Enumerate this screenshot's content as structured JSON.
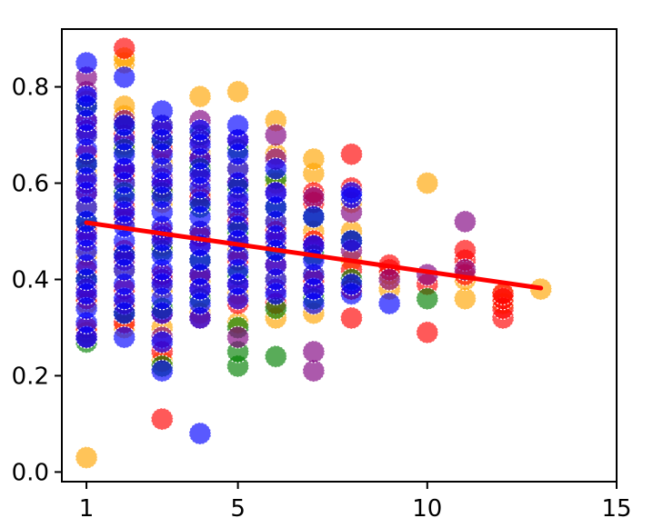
{
  "chart_data": {
    "type": "scatter",
    "title": "",
    "xlabel": "",
    "ylabel": "",
    "xlim": [
      0.35,
      15
    ],
    "ylim": [
      -0.02,
      0.92
    ],
    "xticks": [
      {
        "value": 1,
        "label": "1"
      },
      {
        "value": 5,
        "label": "5"
      },
      {
        "value": 10,
        "label": "10"
      },
      {
        "value": 15,
        "label": "15"
      }
    ],
    "yticks": [
      {
        "value": 0.0,
        "label": "0.0"
      },
      {
        "value": 0.2,
        "label": "0.2"
      },
      {
        "value": 0.4,
        "label": "0.4"
      },
      {
        "value": 0.6,
        "label": "0.6"
      },
      {
        "value": 0.8,
        "label": "0.8"
      }
    ],
    "grid": false,
    "legend": "none",
    "marker_opacity": 0.65,
    "series": [
      {
        "color": "#ffa500",
        "points": [
          [
            1,
            0.03
          ],
          [
            1,
            0.29
          ],
          [
            1,
            0.35
          ],
          [
            1,
            0.45
          ],
          [
            1,
            0.55
          ],
          [
            1,
            0.62
          ],
          [
            1,
            0.7
          ],
          [
            1,
            0.77
          ],
          [
            2,
            0.3
          ],
          [
            2,
            0.34
          ],
          [
            2,
            0.42
          ],
          [
            2,
            0.52
          ],
          [
            2,
            0.6
          ],
          [
            2,
            0.68
          ],
          [
            2,
            0.74
          ],
          [
            2,
            0.76
          ],
          [
            2,
            0.85
          ],
          [
            2,
            0.86
          ],
          [
            3,
            0.23
          ],
          [
            3,
            0.3
          ],
          [
            3,
            0.38
          ],
          [
            3,
            0.47
          ],
          [
            3,
            0.56
          ],
          [
            3,
            0.64
          ],
          [
            3,
            0.72
          ],
          [
            4,
            0.33
          ],
          [
            4,
            0.4
          ],
          [
            4,
            0.5
          ],
          [
            4,
            0.58
          ],
          [
            4,
            0.66
          ],
          [
            4,
            0.78
          ],
          [
            5,
            0.31
          ],
          [
            5,
            0.37
          ],
          [
            5,
            0.46
          ],
          [
            5,
            0.54
          ],
          [
            5,
            0.63
          ],
          [
            5,
            0.79
          ],
          [
            6,
            0.32
          ],
          [
            6,
            0.4
          ],
          [
            6,
            0.52
          ],
          [
            6,
            0.6
          ],
          [
            6,
            0.66
          ],
          [
            6,
            0.73
          ],
          [
            7,
            0.33
          ],
          [
            7,
            0.41
          ],
          [
            7,
            0.5
          ],
          [
            7,
            0.62
          ],
          [
            7,
            0.65
          ],
          [
            8,
            0.38
          ],
          [
            8,
            0.44
          ],
          [
            8,
            0.5
          ],
          [
            8,
            0.56
          ],
          [
            9,
            0.38
          ],
          [
            9,
            0.41
          ],
          [
            10,
            0.6
          ],
          [
            11,
            0.36
          ],
          [
            11,
            0.4
          ],
          [
            12,
            0.35
          ],
          [
            12,
            0.37
          ],
          [
            13,
            0.38
          ]
        ]
      },
      {
        "color": "#ff0000",
        "points": [
          [
            1,
            0.3
          ],
          [
            1,
            0.36
          ],
          [
            1,
            0.42
          ],
          [
            1,
            0.5
          ],
          [
            1,
            0.58
          ],
          [
            1,
            0.66
          ],
          [
            1,
            0.73
          ],
          [
            2,
            0.31
          ],
          [
            2,
            0.38
          ],
          [
            2,
            0.46
          ],
          [
            2,
            0.55
          ],
          [
            2,
            0.62
          ],
          [
            2,
            0.7
          ],
          [
            2,
            0.88
          ],
          [
            3,
            0.11
          ],
          [
            3,
            0.25
          ],
          [
            3,
            0.33
          ],
          [
            3,
            0.41
          ],
          [
            3,
            0.5
          ],
          [
            3,
            0.59
          ],
          [
            3,
            0.67
          ],
          [
            4,
            0.32
          ],
          [
            4,
            0.41
          ],
          [
            4,
            0.49
          ],
          [
            4,
            0.57
          ],
          [
            4,
            0.65
          ],
          [
            5,
            0.35
          ],
          [
            5,
            0.44
          ],
          [
            5,
            0.52
          ],
          [
            5,
            0.6
          ],
          [
            6,
            0.35
          ],
          [
            6,
            0.43
          ],
          [
            6,
            0.5
          ],
          [
            7,
            0.4
          ],
          [
            7,
            0.48
          ],
          [
            7,
            0.56
          ],
          [
            7,
            0.58
          ],
          [
            8,
            0.32
          ],
          [
            8,
            0.38
          ],
          [
            8,
            0.42
          ],
          [
            8,
            0.59
          ],
          [
            8,
            0.66
          ],
          [
            9,
            0.42
          ],
          [
            9,
            0.43
          ],
          [
            10,
            0.29
          ],
          [
            10,
            0.39
          ],
          [
            11,
            0.41
          ],
          [
            11,
            0.44
          ],
          [
            11,
            0.46
          ],
          [
            12,
            0.32
          ],
          [
            12,
            0.34
          ],
          [
            12,
            0.36
          ],
          [
            12,
            0.37
          ]
        ]
      },
      {
        "color": "#008000",
        "points": [
          [
            1,
            0.27
          ],
          [
            1,
            0.4
          ],
          [
            1,
            0.52
          ],
          [
            1,
            0.64
          ],
          [
            1,
            0.76
          ],
          [
            2,
            0.33
          ],
          [
            2,
            0.45
          ],
          [
            2,
            0.58
          ],
          [
            2,
            0.67
          ],
          [
            2,
            0.72
          ],
          [
            3,
            0.22
          ],
          [
            3,
            0.34
          ],
          [
            3,
            0.46
          ],
          [
            3,
            0.58
          ],
          [
            3,
            0.69
          ],
          [
            4,
            0.36
          ],
          [
            4,
            0.44
          ],
          [
            4,
            0.55
          ],
          [
            4,
            0.63
          ],
          [
            4,
            0.7
          ],
          [
            5,
            0.22
          ],
          [
            5,
            0.25
          ],
          [
            5,
            0.3
          ],
          [
            5,
            0.41
          ],
          [
            5,
            0.5
          ],
          [
            5,
            0.59
          ],
          [
            5,
            0.67
          ],
          [
            6,
            0.24
          ],
          [
            6,
            0.34
          ],
          [
            6,
            0.46
          ],
          [
            6,
            0.55
          ],
          [
            6,
            0.61
          ],
          [
            7,
            0.36
          ],
          [
            7,
            0.45
          ],
          [
            7,
            0.53
          ],
          [
            8,
            0.4
          ],
          [
            8,
            0.48
          ],
          [
            10,
            0.36
          ]
        ]
      },
      {
        "color": "#800080",
        "points": [
          [
            1,
            0.28
          ],
          [
            1,
            0.38
          ],
          [
            1,
            0.48
          ],
          [
            1,
            0.6
          ],
          [
            1,
            0.71
          ],
          [
            1,
            0.79
          ],
          [
            1,
            0.82
          ],
          [
            2,
            0.35
          ],
          [
            2,
            0.44
          ],
          [
            2,
            0.53
          ],
          [
            2,
            0.63
          ],
          [
            2,
            0.73
          ],
          [
            3,
            0.28
          ],
          [
            3,
            0.4
          ],
          [
            3,
            0.49
          ],
          [
            3,
            0.61
          ],
          [
            3,
            0.71
          ],
          [
            4,
            0.38
          ],
          [
            4,
            0.47
          ],
          [
            4,
            0.61
          ],
          [
            4,
            0.69
          ],
          [
            4,
            0.73
          ],
          [
            5,
            0.28
          ],
          [
            5,
            0.39
          ],
          [
            5,
            0.48
          ],
          [
            5,
            0.56
          ],
          [
            5,
            0.69
          ],
          [
            6,
            0.38
          ],
          [
            6,
            0.48
          ],
          [
            6,
            0.58
          ],
          [
            6,
            0.65
          ],
          [
            6,
            0.7
          ],
          [
            7,
            0.21
          ],
          [
            7,
            0.25
          ],
          [
            7,
            0.38
          ],
          [
            7,
            0.47
          ],
          [
            7,
            0.57
          ],
          [
            8,
            0.46
          ],
          [
            8,
            0.54
          ],
          [
            9,
            0.4
          ],
          [
            10,
            0.41
          ],
          [
            11,
            0.42
          ],
          [
            11,
            0.52
          ]
        ]
      },
      {
        "color": "#0000ff",
        "points": [
          [
            1,
            0.28
          ],
          [
            1,
            0.31
          ],
          [
            1,
            0.34
          ],
          [
            1,
            0.37
          ],
          [
            1,
            0.4
          ],
          [
            1,
            0.43
          ],
          [
            1,
            0.46
          ],
          [
            1,
            0.49
          ],
          [
            1,
            0.52
          ],
          [
            1,
            0.55
          ],
          [
            1,
            0.58
          ],
          [
            1,
            0.61
          ],
          [
            1,
            0.64
          ],
          [
            1,
            0.67
          ],
          [
            1,
            0.7
          ],
          [
            1,
            0.73
          ],
          [
            1,
            0.76
          ],
          [
            1,
            0.78
          ],
          [
            1,
            0.85
          ],
          [
            2,
            0.28
          ],
          [
            2,
            0.33
          ],
          [
            2,
            0.36
          ],
          [
            2,
            0.39
          ],
          [
            2,
            0.42
          ],
          [
            2,
            0.45
          ],
          [
            2,
            0.48
          ],
          [
            2,
            0.51
          ],
          [
            2,
            0.54
          ],
          [
            2,
            0.57
          ],
          [
            2,
            0.6
          ],
          [
            2,
            0.63
          ],
          [
            2,
            0.66
          ],
          [
            2,
            0.69
          ],
          [
            2,
            0.72
          ],
          [
            2,
            0.82
          ],
          [
            3,
            0.21
          ],
          [
            3,
            0.27
          ],
          [
            3,
            0.33
          ],
          [
            3,
            0.36
          ],
          [
            3,
            0.39
          ],
          [
            3,
            0.42
          ],
          [
            3,
            0.45
          ],
          [
            3,
            0.48
          ],
          [
            3,
            0.51
          ],
          [
            3,
            0.54
          ],
          [
            3,
            0.57
          ],
          [
            3,
            0.6
          ],
          [
            3,
            0.63
          ],
          [
            3,
            0.66
          ],
          [
            3,
            0.69
          ],
          [
            3,
            0.72
          ],
          [
            3,
            0.75
          ],
          [
            4,
            0.08
          ],
          [
            4,
            0.32
          ],
          [
            4,
            0.35
          ],
          [
            4,
            0.38
          ],
          [
            4,
            0.41
          ],
          [
            4,
            0.44
          ],
          [
            4,
            0.47
          ],
          [
            4,
            0.5
          ],
          [
            4,
            0.53
          ],
          [
            4,
            0.56
          ],
          [
            4,
            0.59
          ],
          [
            4,
            0.62
          ],
          [
            4,
            0.65
          ],
          [
            4,
            0.68
          ],
          [
            4,
            0.71
          ],
          [
            5,
            0.36
          ],
          [
            5,
            0.39
          ],
          [
            5,
            0.42
          ],
          [
            5,
            0.45
          ],
          [
            5,
            0.48
          ],
          [
            5,
            0.51
          ],
          [
            5,
            0.54
          ],
          [
            5,
            0.57
          ],
          [
            5,
            0.6
          ],
          [
            5,
            0.63
          ],
          [
            5,
            0.66
          ],
          [
            5,
            0.69
          ],
          [
            5,
            0.72
          ],
          [
            6,
            0.37
          ],
          [
            6,
            0.4
          ],
          [
            6,
            0.43
          ],
          [
            6,
            0.46
          ],
          [
            6,
            0.49
          ],
          [
            6,
            0.52
          ],
          [
            6,
            0.55
          ],
          [
            6,
            0.58
          ],
          [
            6,
            0.63
          ],
          [
            7,
            0.35
          ],
          [
            7,
            0.38
          ],
          [
            7,
            0.41
          ],
          [
            7,
            0.44
          ],
          [
            7,
            0.47
          ],
          [
            7,
            0.53
          ],
          [
            8,
            0.37
          ],
          [
            8,
            0.39
          ],
          [
            8,
            0.48
          ],
          [
            8,
            0.57
          ],
          [
            8,
            0.58
          ],
          [
            9,
            0.35
          ]
        ]
      }
    ],
    "trendline": {
      "color": "#ff0000",
      "x": [
        1,
        13
      ],
      "y": [
        0.518,
        0.382
      ]
    }
  }
}
